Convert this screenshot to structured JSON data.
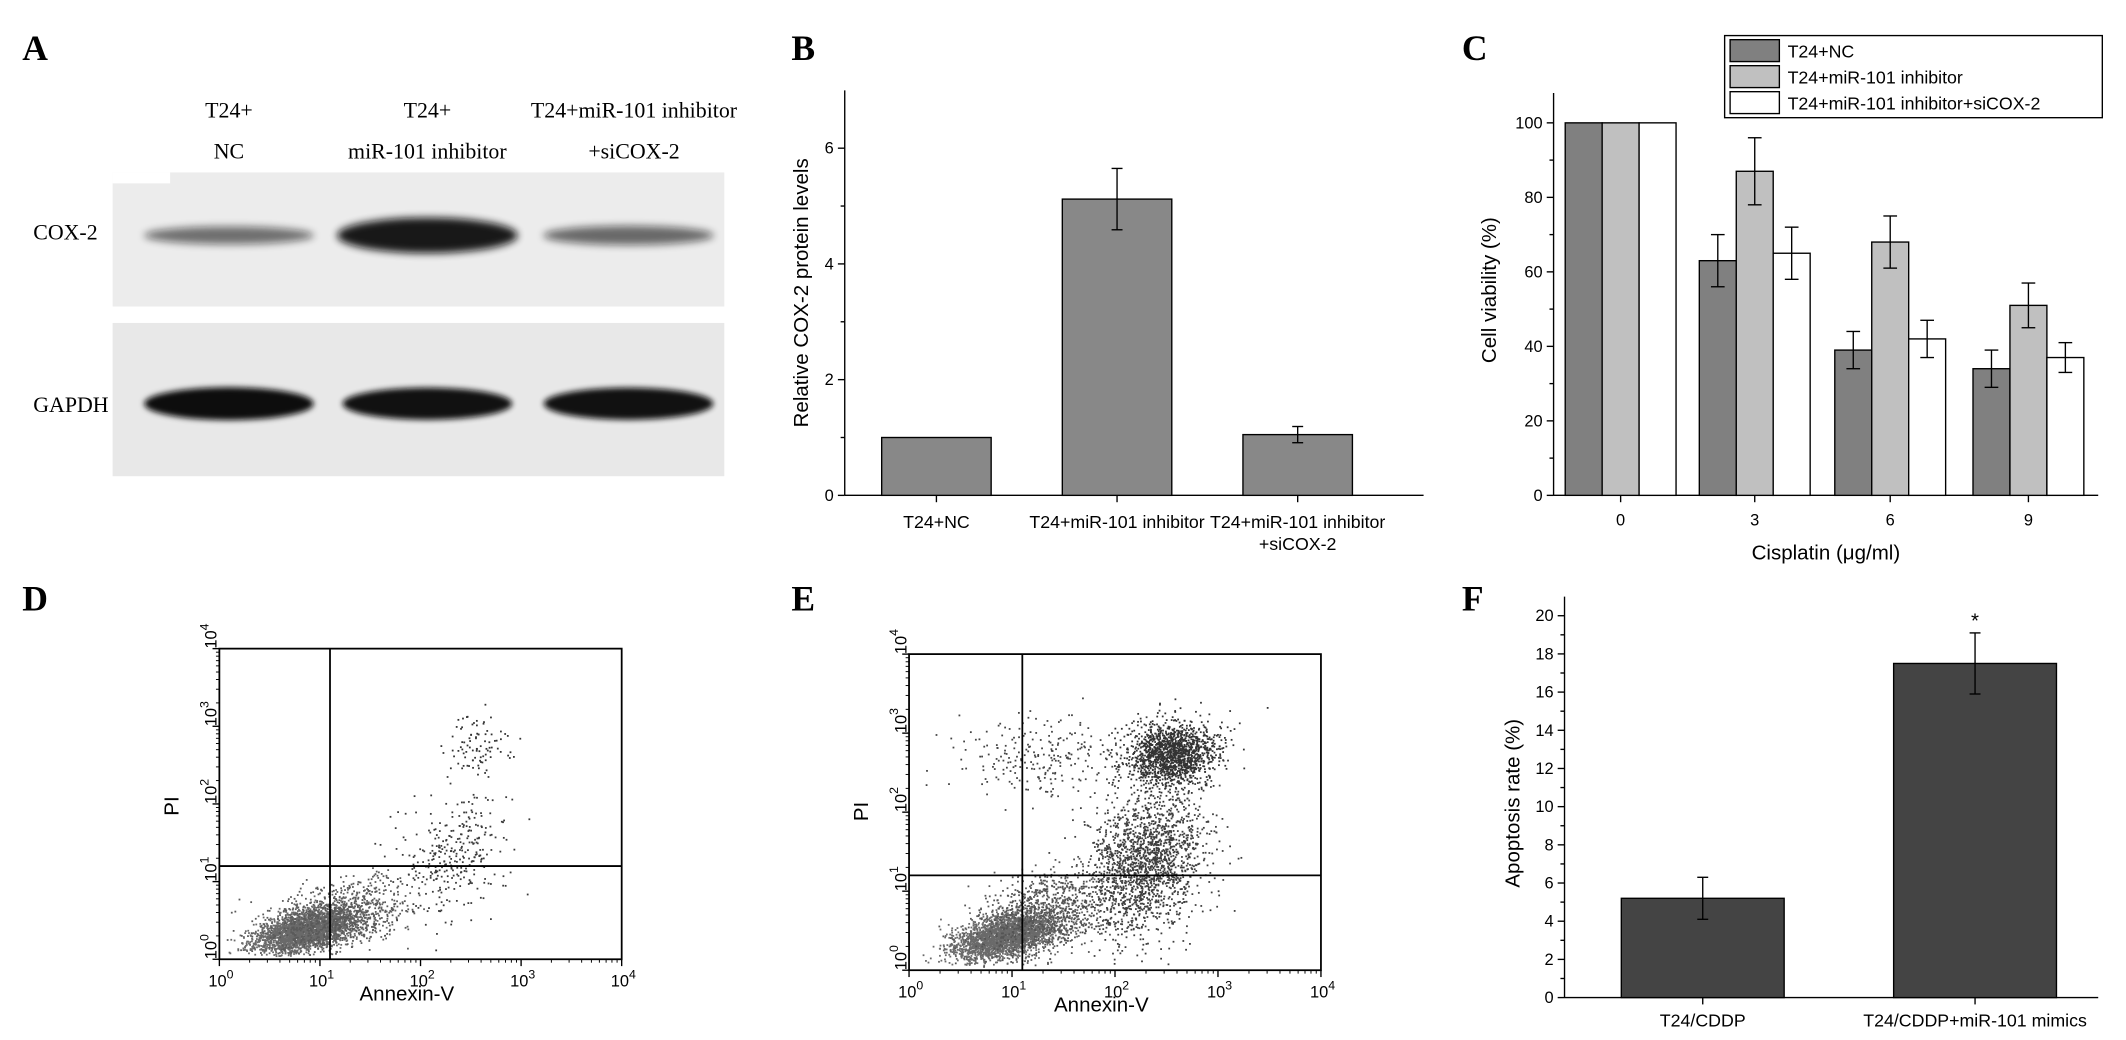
{
  "panels": {
    "A": {
      "letter": "A",
      "lanes": [
        {
          "line1": "T24+",
          "line2": "NC"
        },
        {
          "line1": "T24+",
          "line2": "miR-101 inhibitor"
        },
        {
          "line1": "T24+miR-101 inhibitor",
          "line2": "+siCOX-2"
        }
      ],
      "rows": [
        "COX-2",
        "GAPDH"
      ],
      "cox2_intensity": [
        0.35,
        1.0,
        0.4
      ],
      "gapdh_intensity": [
        1.0,
        0.95,
        0.95
      ]
    },
    "D": {
      "letter": "D",
      "xlabel": "Annexin-V",
      "ylabel": "PI",
      "tick_base": "10",
      "tick_exps": [
        "0",
        "1",
        "2",
        "3",
        "4"
      ]
    },
    "E": {
      "letter": "E",
      "xlabel": "Annexin-V",
      "ylabel": "PI",
      "tick_base": "10",
      "tick_exps": [
        "0",
        "1",
        "2",
        "3",
        "4"
      ]
    }
  },
  "chart_data": [
    {
      "panel": "B",
      "type": "bar",
      "categories": [
        "T24+NC",
        "T24+miR-101 inhibitor",
        "T24+miR-101 inhibitor\n+siCOX-2"
      ],
      "values": [
        1.0,
        5.12,
        1.05
      ],
      "errors": [
        0,
        0.53,
        0.14
      ],
      "ylabel": "Relative COX-2 protein levels",
      "xlabel": "",
      "ylim": [
        0,
        7
      ],
      "yticks": [
        0,
        2,
        4,
        6
      ],
      "bar_color": "#888888"
    },
    {
      "panel": "C",
      "type": "bar",
      "categories": [
        "0",
        "3",
        "6",
        "9"
      ],
      "series": [
        {
          "name": "T24+NC",
          "values": [
            100,
            63,
            39,
            34
          ],
          "errors": [
            0,
            7,
            5,
            5
          ],
          "color": "#808080"
        },
        {
          "name": "T24+miR-101 inhibitor",
          "values": [
            100,
            87,
            68,
            51
          ],
          "errors": [
            0,
            9,
            7,
            6
          ],
          "color": "#c0c0c0"
        },
        {
          "name": "T24+miR-101 inhibitor+siCOX-2",
          "values": [
            100,
            65,
            42,
            37
          ],
          "errors": [
            0,
            7,
            5,
            4
          ],
          "color": "#ffffff"
        }
      ],
      "xlabel": "Cisplatin (μg/ml)",
      "ylabel": "Cell viability (%)",
      "ylim": [
        0,
        108
      ],
      "yticks": [
        0,
        20,
        40,
        60,
        80,
        100
      ],
      "legend_position": "top-right"
    },
    {
      "panel": "F",
      "type": "bar",
      "categories": [
        "T24/CDDP",
        "T24/CDDP+miR-101 mimics"
      ],
      "values": [
        5.2,
        17.5
      ],
      "errors": [
        1.1,
        1.6
      ],
      "ylabel": "Apoptosis rate (%)",
      "xlabel": "",
      "ylim": [
        0,
        21
      ],
      "yticks": [
        0,
        2,
        4,
        6,
        8,
        10,
        12,
        14,
        16,
        18,
        20
      ],
      "annotations": [
        "",
        "*"
      ],
      "bar_color": "#444444"
    }
  ]
}
